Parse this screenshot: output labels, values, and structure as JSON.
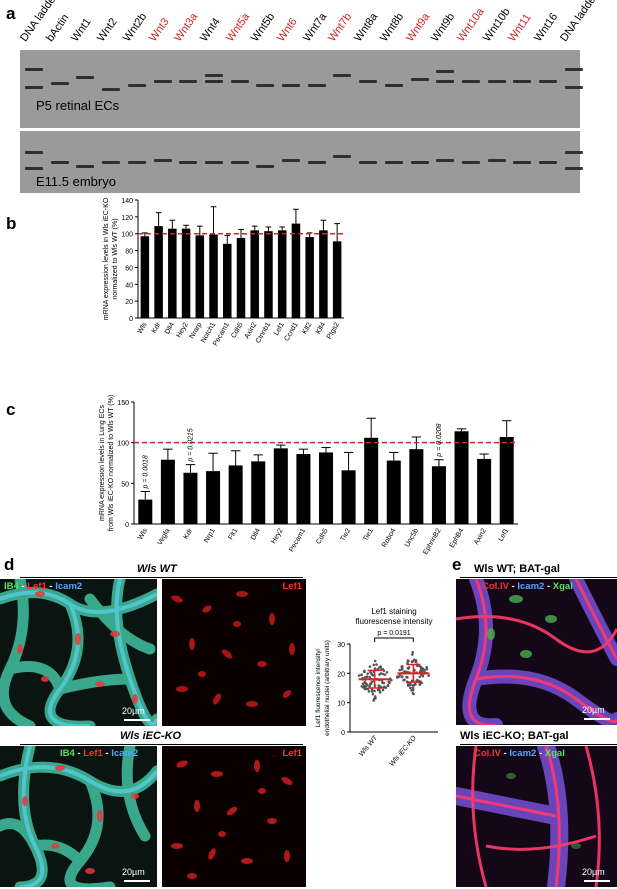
{
  "panels": {
    "a": "a",
    "b": "b",
    "c": "c",
    "d": "d",
    "e": "e"
  },
  "gel": {
    "lanes": [
      {
        "name": "DNA ladder",
        "color": "#000000"
      },
      {
        "name": "bActin",
        "color": "#000000"
      },
      {
        "name": "Wnt1",
        "color": "#000000"
      },
      {
        "name": "Wnt2",
        "color": "#000000"
      },
      {
        "name": "Wnt2b",
        "color": "#000000"
      },
      {
        "name": "Wnt3",
        "color": "#d81e1e"
      },
      {
        "name": "Wnt3a",
        "color": "#d81e1e"
      },
      {
        "name": "Wnt4",
        "color": "#000000"
      },
      {
        "name": "Wnt5a",
        "color": "#d81e1e"
      },
      {
        "name": "Wnt5b",
        "color": "#000000"
      },
      {
        "name": "Wnt6",
        "color": "#d81e1e"
      },
      {
        "name": "Wnt7a",
        "color": "#000000"
      },
      {
        "name": "Wnt7b",
        "color": "#d81e1e"
      },
      {
        "name": "Wnt8a",
        "color": "#000000"
      },
      {
        "name": "Wnt8b",
        "color": "#000000"
      },
      {
        "name": "Wnt9a",
        "color": "#d81e1e"
      },
      {
        "name": "Wnt9b",
        "color": "#000000"
      },
      {
        "name": "Wnt10a",
        "color": "#d81e1e"
      },
      {
        "name": "Wnt10b",
        "color": "#000000"
      },
      {
        "name": "Wnt11",
        "color": "#d81e1e"
      },
      {
        "name": "Wnt16",
        "color": "#000000"
      },
      {
        "name": "DNA ladder",
        "color": "#000000"
      }
    ],
    "top_label": "P5 retinal ECs",
    "bottom_label": "E11.5 embryo"
  },
  "chart_data": [
    {
      "type": "bar",
      "panel": "b",
      "ylabel_lines": [
        "mRNA expression levels in Wls iEC-KO",
        "normalized to Wls WT (%)"
      ],
      "ylim": [
        0,
        140
      ],
      "yticks": [
        0,
        20,
        40,
        60,
        80,
        100,
        120,
        140
      ],
      "reference_line": 100,
      "categories": [
        "Wls",
        "Kdr",
        "Dll4",
        "Hey2",
        "Nrarp",
        "Notch1",
        "Pecam1",
        "Cdh5",
        "Axin2",
        "Ctnnb1",
        "Lef1",
        "Ccnd1",
        "Klf2",
        "Klf4",
        "Ptgs2"
      ],
      "values": [
        97,
        109,
        106,
        106,
        98,
        99,
        88,
        95,
        104,
        103,
        104,
        112,
        96,
        104,
        91
      ],
      "errors": [
        4,
        16,
        10,
        4,
        11,
        33,
        10,
        10,
        5,
        5,
        4,
        17,
        5,
        12,
        21
      ]
    },
    {
      "type": "bar",
      "panel": "c",
      "ylabel_lines": [
        "mRNA expression levels in Lung ECs",
        "from Wls iEC-KO normalized to Wls WT (%)"
      ],
      "ylim": [
        0,
        150
      ],
      "yticks": [
        0,
        50,
        100,
        150
      ],
      "reference_line": 100,
      "categories": [
        "Wls",
        "Vegfa",
        "Kdr",
        "Nrp1",
        "Flt1",
        "Dll4",
        "Hey2",
        "Pecam1",
        "Cdh5",
        "Tie2",
        "Tie1",
        "Robo4",
        "Unc5b",
        "EphrinB2",
        "EphB4",
        "Axin2",
        "Lef1"
      ],
      "values": [
        30,
        79,
        63,
        65,
        72,
        77,
        93,
        86,
        88,
        66,
        106,
        78,
        92,
        71,
        114,
        80,
        107
      ],
      "errors": [
        10,
        13,
        10,
        22,
        18,
        8,
        4,
        6,
        6,
        22,
        24,
        10,
        15,
        8,
        3,
        6,
        20
      ],
      "annotations": [
        {
          "category": "Wls",
          "text": "p = 0.0018"
        },
        {
          "category": "Kdr",
          "text": "p = 0.0215"
        },
        {
          "category": "EphrinB2",
          "text": "p = 0.0208"
        }
      ]
    },
    {
      "type": "scatter",
      "panel": "d",
      "title_lines": [
        "Lef1 staining",
        "fluorescense intensity"
      ],
      "ylabel_lines": [
        "Lef1 fluorescence intensity/",
        "endothelial nuclei (arbitrary units)"
      ],
      "ylim": [
        0,
        30
      ],
      "yticks": [
        0,
        10,
        20,
        30
      ],
      "categories": [
        "Wls WT",
        "Wls iEC-KO"
      ],
      "means": [
        18,
        20
      ],
      "p_value_text": "p = 0.0191"
    }
  ],
  "micrographs": {
    "wt_title": "Wls WT",
    "ko_title": "Wls iEC-KO",
    "stain_ib4": "IB4",
    "stain_lef1": "Lef1",
    "stain_icam2": "Icam2",
    "dash": " - ",
    "scale": "20µm",
    "e_wt_title": "Wls WT; BAT-gal",
    "e_ko_title": "Wls iEC-KO; BAT-gal",
    "stain_col": "Col.IV",
    "stain_xgal": "Xgal",
    "colors": {
      "green": "#5ee05e",
      "red": "#ff3030",
      "blue": "#4fa8ff"
    }
  }
}
